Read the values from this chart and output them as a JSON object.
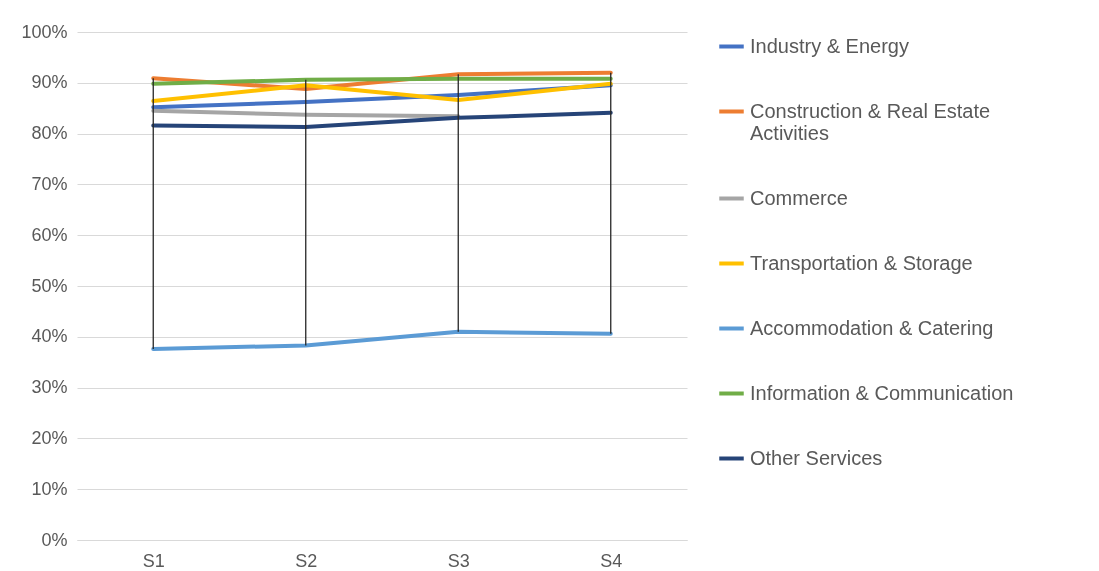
{
  "chart_data": {
    "type": "line",
    "categories": [
      "S1",
      "S2",
      "S3",
      "S4"
    ],
    "series": [
      {
        "name": "Industry & Energy",
        "color": "#4472c4",
        "values": [
          85.2,
          86.2,
          87.6,
          89.5
        ]
      },
      {
        "name": "Construction & Real Estate Activities",
        "color": "#ed7d31",
        "values": [
          90.9,
          88.8,
          91.7,
          92.0
        ]
      },
      {
        "name": "Commerce",
        "color": "#a5a5a5",
        "values": [
          84.5,
          83.7,
          83.4,
          null
        ]
      },
      {
        "name": "Transportation & Storage",
        "color": "#ffc000",
        "values": [
          86.4,
          89.5,
          86.6,
          89.8
        ]
      },
      {
        "name": "Accommodation & Catering",
        "color": "#5b9bd5",
        "values": [
          37.6,
          38.3,
          41.0,
          40.6
        ],
        "errors": [
          [
            37.6,
            90.9
          ],
          [
            38.3,
            90.6
          ],
          [
            41.0,
            91.7
          ],
          [
            40.6,
            92.0
          ]
        ]
      },
      {
        "name": "Information & Communication",
        "color": "#70ad47",
        "values": [
          89.8,
          90.6,
          90.8,
          90.8
        ]
      },
      {
        "name": "Other Services",
        "color": "#264478",
        "values": [
          81.6,
          81.3,
          83.1,
          84.1
        ]
      }
    ],
    "ylim": [
      0,
      100
    ],
    "yticks": [
      {
        "value": 0,
        "label": "0%"
      },
      {
        "value": 10,
        "label": "10%"
      },
      {
        "value": 20,
        "label": "20%"
      },
      {
        "value": 30,
        "label": "30%"
      },
      {
        "value": 40,
        "label": "40%"
      },
      {
        "value": 50,
        "label": "50%"
      },
      {
        "value": 60,
        "label": "60%"
      },
      {
        "value": 70,
        "label": "70%"
      },
      {
        "value": 80,
        "label": "80%"
      },
      {
        "value": 90,
        "label": "90%"
      },
      {
        "value": 100,
        "label": "100%"
      }
    ],
    "grid": "y",
    "legend": "right",
    "marker": "none",
    "line_style": "solid"
  }
}
